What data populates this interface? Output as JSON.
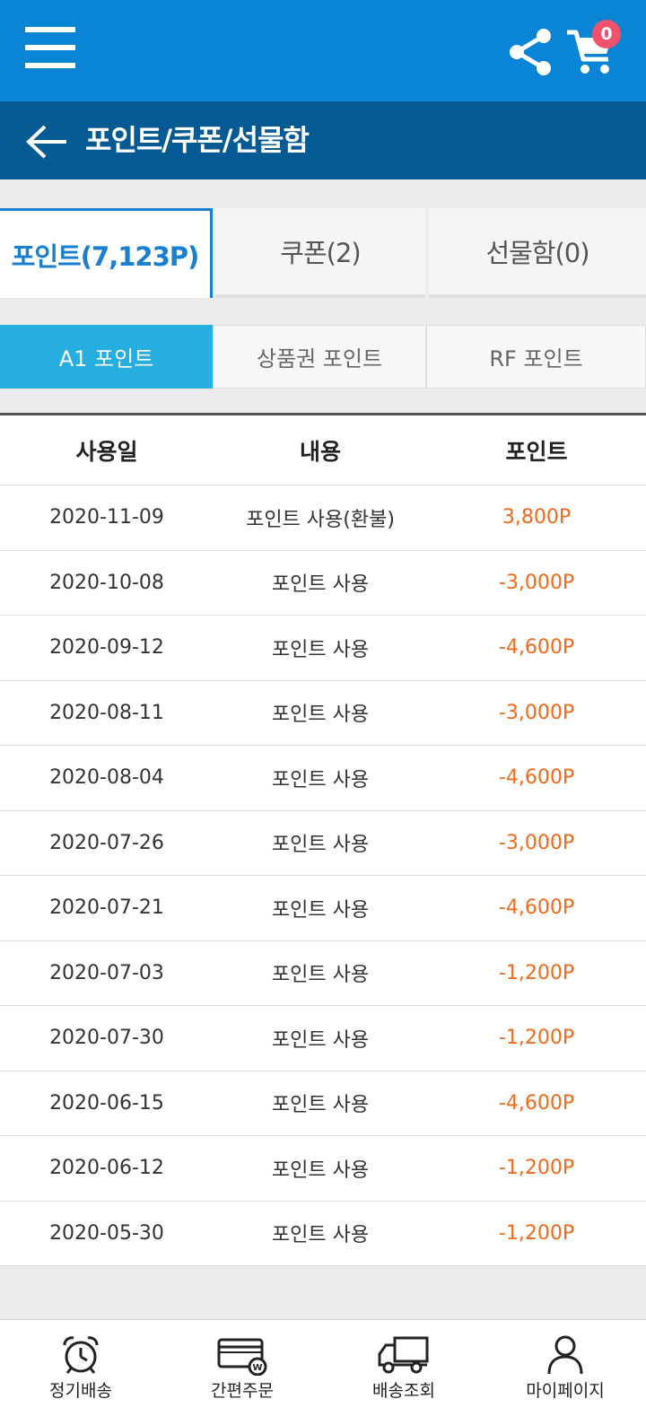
{
  "header": {
    "cart_count": "0",
    "page_title": "포인트/쿠폰/선물함"
  },
  "tabs": [
    {
      "label": "포인트(7,123P)",
      "active": true
    },
    {
      "label": "쿠폰(2)",
      "active": false
    },
    {
      "label": "선물함(0)",
      "active": false
    }
  ],
  "subtabs": [
    {
      "label": "A1 포인트",
      "active": true
    },
    {
      "label": "상품권 포인트",
      "active": false
    },
    {
      "label": "RF 포인트",
      "active": false
    }
  ],
  "table": {
    "headers": [
      "사용일",
      "내용",
      "포인트"
    ],
    "rows": [
      [
        "2020-11-09",
        "포인트 사용(환불)",
        "3,800P"
      ],
      [
        "2020-10-08",
        "포인트 사용",
        "-3,000P"
      ],
      [
        "2020-09-12",
        "포인트 사용",
        "-4,600P"
      ],
      [
        "2020-08-11",
        "포인트 사용",
        "-3,000P"
      ],
      [
        "2020-08-04",
        "포인트 사용",
        "-4,600P"
      ],
      [
        "2020-07-26",
        "포인트 사용",
        "-3,000P"
      ],
      [
        "2020-07-21",
        "포인트 사용",
        "-4,600P"
      ],
      [
        "2020-07-03",
        "포인트 사용",
        "-1,200P"
      ],
      [
        "2020-07-30",
        "포인트 사용",
        "-1,200P"
      ],
      [
        "2020-06-15",
        "포인트 사용",
        "-4,600P"
      ],
      [
        "2020-06-12",
        "포인트 사용",
        "-1,200P"
      ],
      [
        "2020-05-30",
        "포인트 사용",
        "-1,200P"
      ]
    ]
  },
  "bottom_nav": [
    {
      "label": "정기배송",
      "icon": "alarm-clock-icon"
    },
    {
      "label": "간편주문",
      "icon": "card-icon"
    },
    {
      "label": "배송조회",
      "icon": "delivery-truck-icon"
    },
    {
      "label": "마이페이지",
      "icon": "person-icon"
    }
  ],
  "colors": {
    "topbar": "#0a85d6",
    "titlebar": "#065a94",
    "accent": "#1a7fd0",
    "subtab_active": "#27aee0",
    "points": "#f26a1a",
    "badge": "#f0516d"
  }
}
